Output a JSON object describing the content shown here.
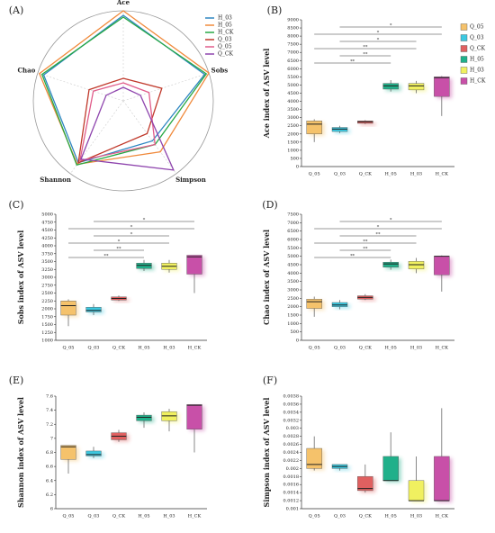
{
  "chart_data": [
    {
      "type": "radar",
      "panel": "(A)",
      "axes": [
        "Ace",
        "Sobs",
        "Simpson",
        "Shannon",
        "Chao"
      ],
      "rlim": [
        0,
        1
      ],
      "series": [
        {
          "name": "H_03",
          "color": "#2e86c1",
          "values": [
            0.95,
            0.95,
            0.55,
            0.85,
            0.93
          ]
        },
        {
          "name": "H_05",
          "color": "#f08a3c",
          "values": [
            1.0,
            1.0,
            0.7,
            0.87,
            0.98
          ]
        },
        {
          "name": "H_CK",
          "color": "#27a844",
          "values": [
            0.93,
            0.97,
            0.6,
            0.88,
            0.95
          ]
        },
        {
          "name": "Q_03",
          "color": "#c0392b",
          "values": [
            0.25,
            0.45,
            0.45,
            0.85,
            0.4
          ]
        },
        {
          "name": "Q_05",
          "color": "#e05c8a",
          "values": [
            0.2,
            0.3,
            0.6,
            0.82,
            0.35
          ]
        },
        {
          "name": "Q_CK",
          "color": "#8e44ad",
          "values": [
            0.15,
            0.2,
            0.95,
            0.8,
            0.2
          ]
        }
      ]
    },
    {
      "type": "box",
      "panel": "(B)",
      "ylabel": "Ace index of ASV level",
      "legend": true,
      "categories": [
        "Q_05",
        "Q_03",
        "Q_CK",
        "H_05",
        "H_03",
        "H_CK"
      ],
      "colors": [
        "#f5c26b",
        "#3cc8e0",
        "#e06060",
        "#20b08a",
        "#f0f060",
        "#c850a8"
      ],
      "ylim": [
        0,
        9000
      ],
      "yticks": [
        0,
        500,
        1000,
        1500,
        2000,
        2500,
        3000,
        3500,
        4000,
        4500,
        5000,
        5500,
        6000,
        6500,
        7000,
        7500,
        8000,
        8500,
        9000
      ],
      "stats": [
        [
          1500,
          2000,
          2600,
          2800,
          2900
        ],
        [
          2050,
          2150,
          2300,
          2400,
          2500
        ],
        [
          2600,
          2650,
          2750,
          2800,
          2850
        ],
        [
          4600,
          4750,
          4950,
          5100,
          5300
        ],
        [
          4500,
          4700,
          4950,
          5100,
          5250
        ],
        [
          3100,
          4300,
          5450,
          5500,
          5550
        ]
      ],
      "sig": [
        {
          "pair": [
            "Q_03",
            "H_CK"
          ],
          "label": "*"
        },
        {
          "pair": [
            "Q_05",
            "H_CK"
          ],
          "label": "*"
        },
        {
          "pair": [
            "Q_03",
            "H_03"
          ],
          "label": "*"
        },
        {
          "pair": [
            "Q_05",
            "H_03"
          ],
          "label": "**"
        },
        {
          "pair": [
            "Q_03",
            "H_05"
          ],
          "label": "**"
        },
        {
          "pair": [
            "Q_05",
            "H_05"
          ],
          "label": "**"
        }
      ]
    },
    {
      "type": "box",
      "panel": "(C)",
      "ylabel": "Sobs index of ASV level",
      "categories": [
        "Q_05",
        "Q_03",
        "Q_CK",
        "H_05",
        "H_03",
        "H_CK"
      ],
      "colors": [
        "#f5c26b",
        "#3cc8e0",
        "#e06060",
        "#20b08a",
        "#f0f060",
        "#c850a8"
      ],
      "ylim": [
        1000,
        5000
      ],
      "yticks": [
        1000,
        1250,
        1500,
        1750,
        2000,
        2250,
        2500,
        2750,
        3000,
        3250,
        3500,
        3750,
        4000,
        4250,
        4500,
        4750,
        5000
      ],
      "stats": [
        [
          1450,
          1800,
          2100,
          2250,
          2300
        ],
        [
          1800,
          1900,
          1950,
          2050,
          2150
        ],
        [
          2250,
          2280,
          2330,
          2380,
          2420
        ],
        [
          3200,
          3280,
          3380,
          3450,
          3550
        ],
        [
          3150,
          3250,
          3350,
          3450,
          3550
        ],
        [
          2500,
          3100,
          3650,
          3700,
          3700
        ]
      ],
      "sig": [
        {
          "pair": [
            "Q_03",
            "H_CK"
          ],
          "label": "*"
        },
        {
          "pair": [
            "Q_05",
            "H_CK"
          ],
          "label": "*"
        },
        {
          "pair": [
            "Q_03",
            "H_03"
          ],
          "label": "*"
        },
        {
          "pair": [
            "Q_05",
            "H_03"
          ],
          "label": "*"
        },
        {
          "pair": [
            "Q_03",
            "H_05"
          ],
          "label": "**"
        },
        {
          "pair": [
            "Q_05",
            "H_05"
          ],
          "label": "**"
        }
      ]
    },
    {
      "type": "box",
      "panel": "(D)",
      "ylabel": "Chao index of ASV level",
      "categories": [
        "Q_05",
        "Q_03",
        "Q_CK",
        "H_05",
        "H_03",
        "H_CK"
      ],
      "colors": [
        "#f5c26b",
        "#3cc8e0",
        "#e06060",
        "#20b08a",
        "#f0f060",
        "#c850a8"
      ],
      "ylim": [
        0,
        7500
      ],
      "yticks": [
        0,
        500,
        1000,
        1500,
        2000,
        2500,
        3000,
        3500,
        4000,
        4500,
        5000,
        5500,
        6000,
        6500,
        7000,
        7500
      ],
      "stats": [
        [
          1400,
          1900,
          2300,
          2450,
          2600
        ],
        [
          1850,
          2000,
          2100,
          2250,
          2400
        ],
        [
          2400,
          2450,
          2550,
          2650,
          2750
        ],
        [
          4200,
          4350,
          4550,
          4650,
          4800
        ],
        [
          4000,
          4250,
          4500,
          4700,
          4900
        ],
        [
          2900,
          3900,
          5000,
          5000,
          5050
        ]
      ],
      "sig": [
        {
          "pair": [
            "Q_03",
            "H_CK"
          ],
          "label": "*"
        },
        {
          "pair": [
            "Q_05",
            "H_CK"
          ],
          "label": "*"
        },
        {
          "pair": [
            "Q_03",
            "H_03"
          ],
          "label": "**"
        },
        {
          "pair": [
            "Q_05",
            "H_03"
          ],
          "label": "**"
        },
        {
          "pair": [
            "Q_03",
            "H_05"
          ],
          "label": "**"
        },
        {
          "pair": [
            "Q_05",
            "H_05"
          ],
          "label": "**"
        }
      ]
    },
    {
      "type": "box",
      "panel": "(E)",
      "ylabel": "Shannon index of ASV level",
      "categories": [
        "Q_05",
        "Q_03",
        "Q_CK",
        "H_05",
        "H_03",
        "H_CK"
      ],
      "colors": [
        "#f5c26b",
        "#3cc8e0",
        "#e06060",
        "#20b08a",
        "#f0f060",
        "#c850a8"
      ],
      "ylim": [
        6,
        7.6
      ],
      "yticks": [
        6,
        6.2,
        6.4,
        6.6,
        6.8,
        7,
        7.2,
        7.4,
        7.6
      ],
      "stats": [
        [
          6.5,
          6.7,
          6.88,
          6.9,
          6.9
        ],
        [
          6.72,
          6.75,
          6.77,
          6.82,
          6.88
        ],
        [
          6.95,
          6.98,
          7.03,
          7.08,
          7.12
        ],
        [
          7.15,
          7.25,
          7.3,
          7.33,
          7.37
        ],
        [
          7.1,
          7.25,
          7.32,
          7.38,
          7.42
        ],
        [
          6.8,
          7.13,
          7.47,
          7.48,
          7.48
        ]
      ]
    },
    {
      "type": "box",
      "panel": "(F)",
      "ylabel": "Simpson index of ASV level",
      "categories": [
        "Q_05",
        "Q_03",
        "Q_CK",
        "H_05",
        "H_03",
        "H_CK"
      ],
      "colors": [
        "#f5c26b",
        "#3cc8e0",
        "#e06060",
        "#20b08a",
        "#f0f060",
        "#c850a8"
      ],
      "ylim": [
        0.001,
        0.0038
      ],
      "yticks": [
        0.001,
        0.0012,
        0.0014,
        0.0016,
        0.0018,
        0.002,
        0.0022,
        0.0024,
        0.0026,
        0.0028,
        0.003,
        0.0032,
        0.0034,
        0.0036,
        0.0038
      ],
      "stats": [
        [
          0.00195,
          0.002,
          0.0021,
          0.0025,
          0.0028
        ],
        [
          0.00195,
          0.002,
          0.00205,
          0.0021,
          0.0021
        ],
        [
          0.0014,
          0.00145,
          0.0015,
          0.0018,
          0.0021
        ],
        [
          0.0017,
          0.0017,
          0.0017,
          0.0023,
          0.0029
        ],
        [
          0.0012,
          0.0012,
          0.0012,
          0.0017,
          0.0023
        ],
        [
          0.0012,
          0.0012,
          0.0012,
          0.0023,
          0.0035
        ]
      ]
    }
  ]
}
